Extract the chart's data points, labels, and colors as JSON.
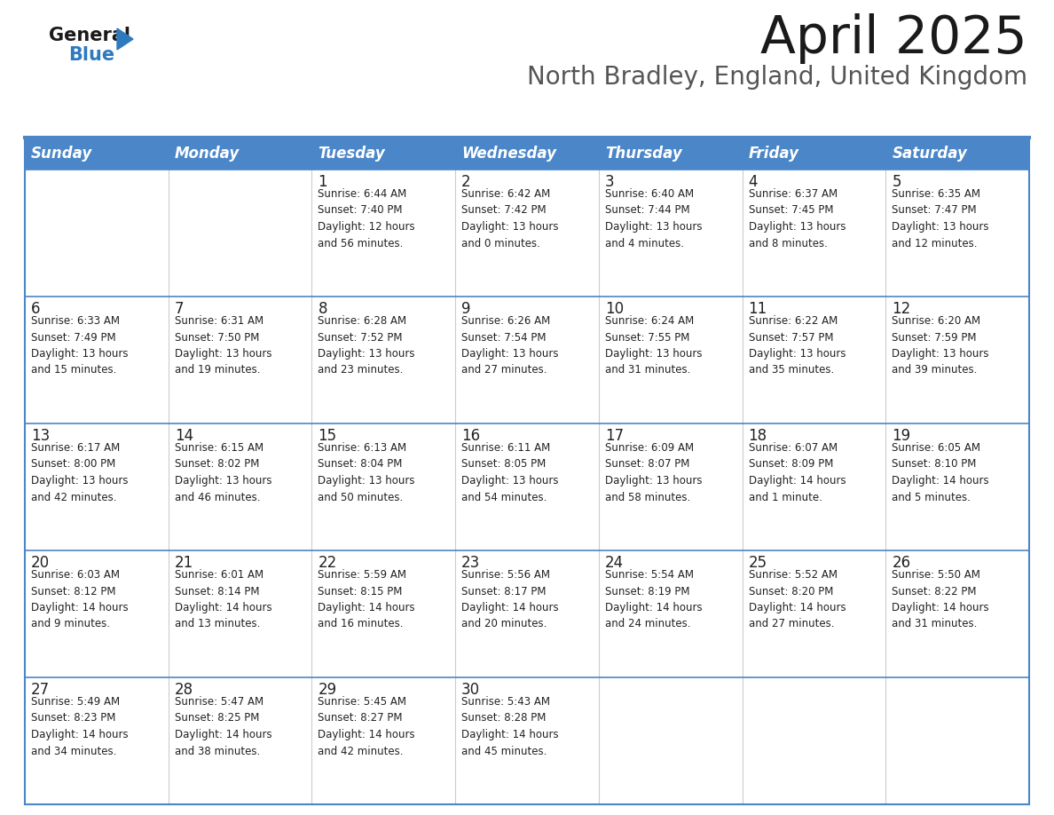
{
  "title": "April 2025",
  "subtitle": "North Bradley, England, United Kingdom",
  "header_bg": "#4a86c8",
  "header_text_color": "#ffffff",
  "day_names": [
    "Sunday",
    "Monday",
    "Tuesday",
    "Wednesday",
    "Thursday",
    "Friday",
    "Saturday"
  ],
  "title_font_size": 42,
  "subtitle_font_size": 20,
  "cell_text_color": "#222222",
  "cell_bg_color": "#f9f9f9",
  "border_color": "#4a86c8",
  "row_border_color": "#4a86c8",
  "col_border_color": "#cccccc",
  "num_font_size": 11,
  "info_font_size": 8.5,
  "header_font_size": 12,
  "logo_general_color": "#1a1a1a",
  "logo_blue_color": "#2e7abf",
  "weeks": [
    [
      {
        "day": null,
        "info": null
      },
      {
        "day": null,
        "info": null
      },
      {
        "day": 1,
        "info": "Sunrise: 6:44 AM\nSunset: 7:40 PM\nDaylight: 12 hours\nand 56 minutes."
      },
      {
        "day": 2,
        "info": "Sunrise: 6:42 AM\nSunset: 7:42 PM\nDaylight: 13 hours\nand 0 minutes."
      },
      {
        "day": 3,
        "info": "Sunrise: 6:40 AM\nSunset: 7:44 PM\nDaylight: 13 hours\nand 4 minutes."
      },
      {
        "day": 4,
        "info": "Sunrise: 6:37 AM\nSunset: 7:45 PM\nDaylight: 13 hours\nand 8 minutes."
      },
      {
        "day": 5,
        "info": "Sunrise: 6:35 AM\nSunset: 7:47 PM\nDaylight: 13 hours\nand 12 minutes."
      }
    ],
    [
      {
        "day": 6,
        "info": "Sunrise: 6:33 AM\nSunset: 7:49 PM\nDaylight: 13 hours\nand 15 minutes."
      },
      {
        "day": 7,
        "info": "Sunrise: 6:31 AM\nSunset: 7:50 PM\nDaylight: 13 hours\nand 19 minutes."
      },
      {
        "day": 8,
        "info": "Sunrise: 6:28 AM\nSunset: 7:52 PM\nDaylight: 13 hours\nand 23 minutes."
      },
      {
        "day": 9,
        "info": "Sunrise: 6:26 AM\nSunset: 7:54 PM\nDaylight: 13 hours\nand 27 minutes."
      },
      {
        "day": 10,
        "info": "Sunrise: 6:24 AM\nSunset: 7:55 PM\nDaylight: 13 hours\nand 31 minutes."
      },
      {
        "day": 11,
        "info": "Sunrise: 6:22 AM\nSunset: 7:57 PM\nDaylight: 13 hours\nand 35 minutes."
      },
      {
        "day": 12,
        "info": "Sunrise: 6:20 AM\nSunset: 7:59 PM\nDaylight: 13 hours\nand 39 minutes."
      }
    ],
    [
      {
        "day": 13,
        "info": "Sunrise: 6:17 AM\nSunset: 8:00 PM\nDaylight: 13 hours\nand 42 minutes."
      },
      {
        "day": 14,
        "info": "Sunrise: 6:15 AM\nSunset: 8:02 PM\nDaylight: 13 hours\nand 46 minutes."
      },
      {
        "day": 15,
        "info": "Sunrise: 6:13 AM\nSunset: 8:04 PM\nDaylight: 13 hours\nand 50 minutes."
      },
      {
        "day": 16,
        "info": "Sunrise: 6:11 AM\nSunset: 8:05 PM\nDaylight: 13 hours\nand 54 minutes."
      },
      {
        "day": 17,
        "info": "Sunrise: 6:09 AM\nSunset: 8:07 PM\nDaylight: 13 hours\nand 58 minutes."
      },
      {
        "day": 18,
        "info": "Sunrise: 6:07 AM\nSunset: 8:09 PM\nDaylight: 14 hours\nand 1 minute."
      },
      {
        "day": 19,
        "info": "Sunrise: 6:05 AM\nSunset: 8:10 PM\nDaylight: 14 hours\nand 5 minutes."
      }
    ],
    [
      {
        "day": 20,
        "info": "Sunrise: 6:03 AM\nSunset: 8:12 PM\nDaylight: 14 hours\nand 9 minutes."
      },
      {
        "day": 21,
        "info": "Sunrise: 6:01 AM\nSunset: 8:14 PM\nDaylight: 14 hours\nand 13 minutes."
      },
      {
        "day": 22,
        "info": "Sunrise: 5:59 AM\nSunset: 8:15 PM\nDaylight: 14 hours\nand 16 minutes."
      },
      {
        "day": 23,
        "info": "Sunrise: 5:56 AM\nSunset: 8:17 PM\nDaylight: 14 hours\nand 20 minutes."
      },
      {
        "day": 24,
        "info": "Sunrise: 5:54 AM\nSunset: 8:19 PM\nDaylight: 14 hours\nand 24 minutes."
      },
      {
        "day": 25,
        "info": "Sunrise: 5:52 AM\nSunset: 8:20 PM\nDaylight: 14 hours\nand 27 minutes."
      },
      {
        "day": 26,
        "info": "Sunrise: 5:50 AM\nSunset: 8:22 PM\nDaylight: 14 hours\nand 31 minutes."
      }
    ],
    [
      {
        "day": 27,
        "info": "Sunrise: 5:49 AM\nSunset: 8:23 PM\nDaylight: 14 hours\nand 34 minutes."
      },
      {
        "day": 28,
        "info": "Sunrise: 5:47 AM\nSunset: 8:25 PM\nDaylight: 14 hours\nand 38 minutes."
      },
      {
        "day": 29,
        "info": "Sunrise: 5:45 AM\nSunset: 8:27 PM\nDaylight: 14 hours\nand 42 minutes."
      },
      {
        "day": 30,
        "info": "Sunrise: 5:43 AM\nSunset: 8:28 PM\nDaylight: 14 hours\nand 45 minutes."
      },
      {
        "day": null,
        "info": null
      },
      {
        "day": null,
        "info": null
      },
      {
        "day": null,
        "info": null
      }
    ]
  ]
}
